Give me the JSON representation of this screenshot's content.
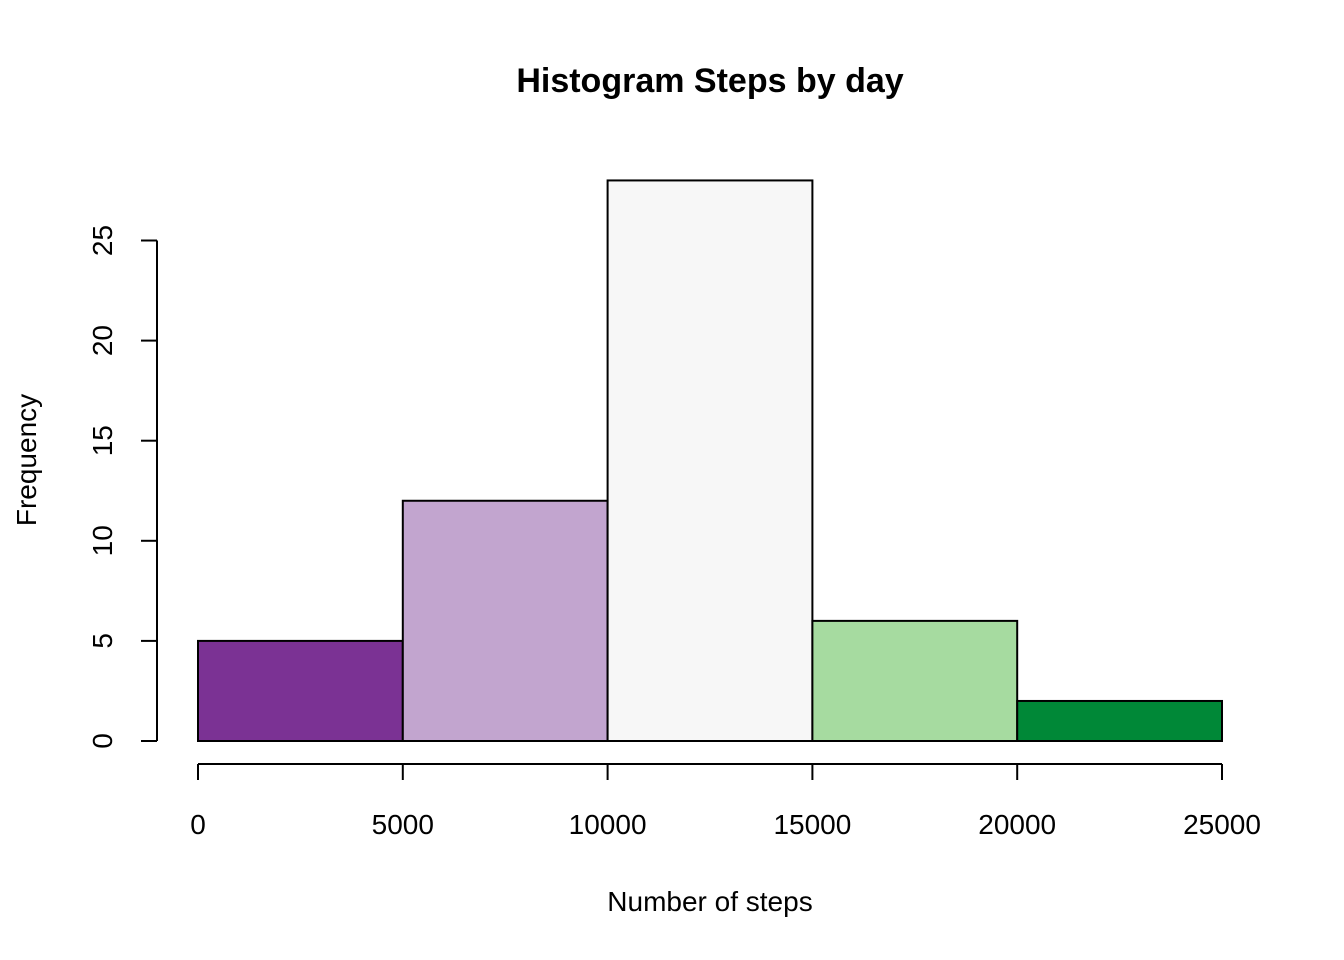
{
  "chart_data": {
    "type": "bar",
    "title": "Histogram Steps by day",
    "xlabel": "Number of steps",
    "ylabel": "Frequency",
    "bins": [
      {
        "from": 0,
        "to": 5000,
        "count": 5,
        "color": "#7B3294"
      },
      {
        "from": 5000,
        "to": 10000,
        "count": 12,
        "color": "#C2A5CF"
      },
      {
        "from": 10000,
        "to": 15000,
        "count": 28,
        "color": "#F7F7F7"
      },
      {
        "from": 15000,
        "to": 20000,
        "count": 6,
        "color": "#A6DBA0"
      },
      {
        "from": 20000,
        "to": 25000,
        "count": 2,
        "color": "#008837"
      }
    ],
    "xlim": [
      0,
      25000
    ],
    "ylim": [
      0,
      28
    ],
    "x_ticks": [
      "0",
      "5000",
      "10000",
      "15000",
      "20000",
      "25000"
    ],
    "y_ticks": [
      "0",
      "5",
      "10",
      "15",
      "20",
      "25"
    ],
    "grid": false,
    "legend": "none"
  }
}
